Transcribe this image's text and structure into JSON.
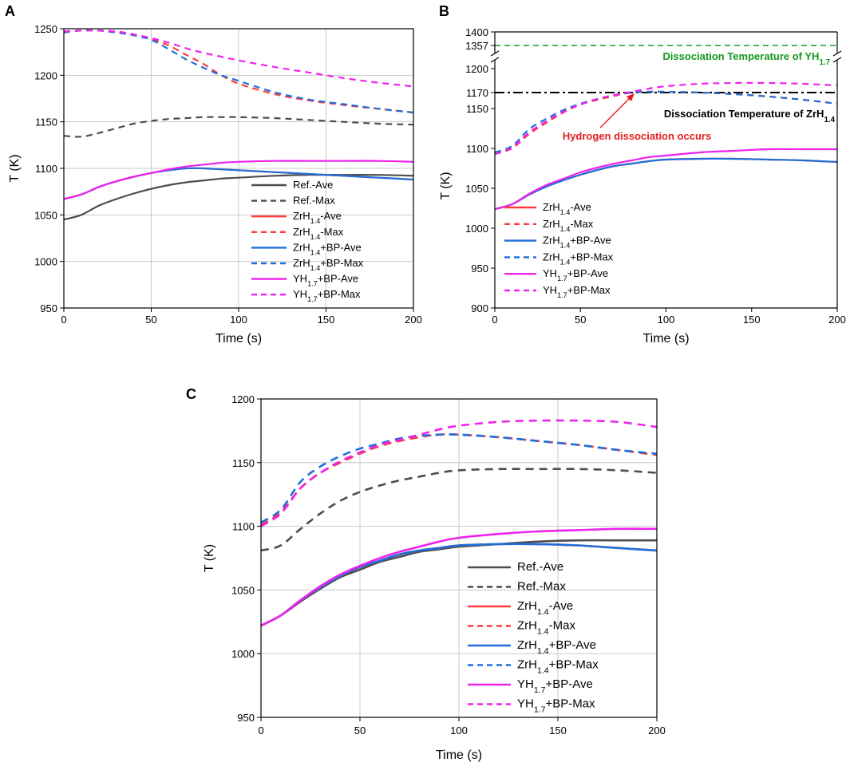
{
  "figure": {
    "panels": [
      "A",
      "B",
      "C"
    ]
  },
  "colors": {
    "ref": "#4d4d4d",
    "zr": "#ff3b3b",
    "zrbp": "#1e6fd9",
    "yh": "#ee22ee",
    "green": "#14991e",
    "red_text": "#e41e1e"
  },
  "chart_data": [
    {
      "panel": "A",
      "type": "line",
      "xlabel": "Time (s)",
      "ylabel": "T (K)",
      "xlim": [
        0,
        200
      ],
      "ylim": [
        950,
        1250
      ],
      "xticks": [
        "0",
        "50",
        "100",
        "150",
        "200"
      ],
      "yticks": [
        "950",
        "1000",
        "1050",
        "1100",
        "1150",
        "1200",
        "1250"
      ],
      "grid": true,
      "legend_position": "bottom-right",
      "x": [
        0,
        10,
        20,
        30,
        40,
        50,
        60,
        70,
        80,
        90,
        100,
        120,
        140,
        160,
        180,
        200
      ],
      "series": [
        {
          "name": "Ref.-Ave",
          "sub": "",
          "label_prefix": "Ref.-Ave",
          "style": "solid",
          "color_key": "ref",
          "values": [
            1045,
            1050,
            1060,
            1067,
            1073,
            1078,
            1082,
            1085,
            1087,
            1089,
            1090,
            1092,
            1093,
            1093,
            1093,
            1092
          ]
        },
        {
          "name": "Ref.-Max",
          "style": "dashed",
          "color_key": "ref",
          "values": [
            1135,
            1134,
            1138,
            1143,
            1148,
            1151,
            1153,
            1154,
            1155,
            1155,
            1155,
            1154,
            1152,
            1150,
            1148,
            1147
          ]
        },
        {
          "name": "ZrH1.4-Ave",
          "style": "solid",
          "color_key": "zr",
          "values": [
            1067,
            1072,
            1080,
            1086,
            1091,
            1095,
            1098,
            1100,
            1100,
            1099,
            1098,
            1096,
            1094,
            1092,
            1090,
            1088
          ]
        },
        {
          "name": "ZrH1.4-Max",
          "style": "dashed",
          "color_key": "zr",
          "values": [
            1247,
            1248,
            1248,
            1246,
            1243,
            1239,
            1232,
            1222,
            1212,
            1200,
            1191,
            1180,
            1173,
            1168,
            1164,
            1160
          ]
        },
        {
          "name": "ZrH1.4+BP-Ave",
          "style": "solid",
          "color_key": "zrbp",
          "values": [
            1067,
            1072,
            1080,
            1086,
            1091,
            1095,
            1098,
            1100,
            1100,
            1099,
            1098,
            1096,
            1094,
            1092,
            1090,
            1088
          ]
        },
        {
          "name": "ZrH1.4+BP-Max",
          "style": "dashed",
          "color_key": "zrbp",
          "values": [
            1246,
            1248,
            1248,
            1246,
            1243,
            1238,
            1228,
            1217,
            1208,
            1200,
            1194,
            1182,
            1174,
            1169,
            1164,
            1160
          ]
        },
        {
          "name": "YH1.7+BP-Ave",
          "style": "solid",
          "color_key": "yh",
          "values": [
            1067,
            1072,
            1080,
            1086,
            1091,
            1095,
            1099,
            1102,
            1104,
            1106,
            1107,
            1108,
            1108,
            1108,
            1108,
            1107
          ]
        },
        {
          "name": "YH1.7+BP-Max",
          "style": "dashed",
          "color_key": "yh",
          "values": [
            1247,
            1248,
            1248,
            1247,
            1244,
            1240,
            1235,
            1229,
            1224,
            1220,
            1216,
            1209,
            1203,
            1197,
            1192,
            1188
          ]
        }
      ],
      "legend": [
        {
          "main": "Ref.-Ave",
          "sub": "",
          "tail": "",
          "key": "ref",
          "dash": false
        },
        {
          "main": "Ref.-Max",
          "sub": "",
          "tail": "",
          "key": "ref",
          "dash": true
        },
        {
          "main": "ZrH",
          "sub": "1.4",
          "tail": "-Ave",
          "key": "zr",
          "dash": false
        },
        {
          "main": "ZrH",
          "sub": "1.4",
          "tail": "-Max",
          "key": "zr",
          "dash": true
        },
        {
          "main": "ZrH",
          "sub": "1.4",
          "tail": "+BP-Ave",
          "key": "zrbp",
          "dash": false
        },
        {
          "main": "ZrH",
          "sub": "1.4",
          "tail": "+BP-Max",
          "key": "zrbp",
          "dash": true
        },
        {
          "main": "YH",
          "sub": "1.7",
          "tail": "+BP-Ave",
          "key": "yh",
          "dash": false
        },
        {
          "main": "YH",
          "sub": "1.7",
          "tail": "+BP-Max",
          "key": "yh",
          "dash": true
        }
      ]
    },
    {
      "panel": "B",
      "type": "line",
      "xlabel": "Time (s)",
      "ylabel": "T (K)",
      "xlim": [
        0,
        200
      ],
      "ylim": [
        900,
        1400
      ],
      "axis_break": [
        1200,
        1357
      ],
      "xticks": [
        "0",
        "50",
        "100",
        "150",
        "200"
      ],
      "yticks_lower": [
        "900",
        "950",
        "1000",
        "1050",
        "1100",
        "1150",
        "1170",
        "1200"
      ],
      "yticks_upper": [
        "1357",
        "1400"
      ],
      "grid": false,
      "legend_position": "bottom-left",
      "reference_lines": [
        {
          "value": 1357,
          "label": "Dissociation Temperature of YH",
          "sub": "1.7",
          "color_key": "green",
          "style": "dashed"
        },
        {
          "value": 1170,
          "label": "Dissociation Temperature of ZrH",
          "sub": "1.4",
          "color_key": "ref",
          "style": "dashdot"
        }
      ],
      "annotation": {
        "text": "Hydrogen dissociation occurs",
        "color_key": "red_text",
        "points_to": [
          82,
          1170
        ]
      },
      "x": [
        0,
        10,
        20,
        30,
        40,
        50,
        60,
        70,
        80,
        90,
        100,
        120,
        140,
        160,
        180,
        200
      ],
      "series": [
        {
          "name": "ZrH1.4-Ave",
          "style": "solid",
          "color_key": "zr",
          "values": [
            1024,
            1030,
            1042,
            1052,
            1060,
            1067,
            1073,
            1078,
            1081,
            1084,
            1086,
            1087,
            1087,
            1086,
            1085,
            1083
          ]
        },
        {
          "name": "ZrH1.4-Max",
          "style": "dashed",
          "color_key": "zr",
          "values": [
            1093,
            1100,
            1118,
            1132,
            1145,
            1155,
            1161,
            1166,
            1170,
            1171,
            1171,
            1170,
            1168,
            1165,
            1161,
            1156
          ]
        },
        {
          "name": "ZrH1.4+BP-Ave",
          "style": "solid",
          "color_key": "zrbp",
          "values": [
            1024,
            1030,
            1042,
            1052,
            1060,
            1067,
            1073,
            1078,
            1081,
            1084,
            1086,
            1087,
            1087,
            1086,
            1085,
            1083
          ]
        },
        {
          "name": "ZrH1.4+BP-Max",
          "style": "dashed",
          "color_key": "zrbp",
          "values": [
            1095,
            1103,
            1124,
            1137,
            1148,
            1156,
            1162,
            1167,
            1170,
            1171,
            1171,
            1170,
            1168,
            1165,
            1161,
            1156
          ]
        },
        {
          "name": "YH1.7+BP-Ave",
          "style": "solid",
          "color_key": "yh",
          "values": [
            1024,
            1030,
            1043,
            1054,
            1062,
            1070,
            1076,
            1081,
            1085,
            1089,
            1091,
            1095,
            1097,
            1099,
            1099,
            1099
          ]
        },
        {
          "name": "YH1.7+BP-Max",
          "style": "dashed",
          "color_key": "yh",
          "values": [
            1093,
            1101,
            1120,
            1134,
            1146,
            1155,
            1162,
            1167,
            1171,
            1175,
            1178,
            1181,
            1182,
            1182,
            1181,
            1179
          ]
        }
      ],
      "legend": [
        {
          "main": "ZrH",
          "sub": "1.4",
          "tail": "-Ave",
          "key": "zr",
          "dash": false
        },
        {
          "main": "ZrH",
          "sub": "1.4",
          "tail": "-Max",
          "key": "zr",
          "dash": true
        },
        {
          "main": "ZrH",
          "sub": "1.4",
          "tail": "+BP-Ave",
          "key": "zrbp",
          "dash": false
        },
        {
          "main": "ZrH",
          "sub": "1.4",
          "tail": "+BP-Max",
          "key": "zrbp",
          "dash": true
        },
        {
          "main": "YH",
          "sub": "1.7",
          "tail": "+BP-Ave",
          "key": "yh",
          "dash": false
        },
        {
          "main": "YH",
          "sub": "1.7",
          "tail": "+BP-Max",
          "key": "yh",
          "dash": true
        }
      ]
    },
    {
      "panel": "C",
      "type": "line",
      "xlabel": "Time (s)",
      "ylabel": "T (K)",
      "xlim": [
        0,
        200
      ],
      "ylim": [
        950,
        1200
      ],
      "xticks": [
        "0",
        "50",
        "100",
        "150",
        "200"
      ],
      "yticks": [
        "950",
        "1000",
        "1050",
        "1100",
        "1150",
        "1200"
      ],
      "grid": true,
      "legend_position": "bottom-right",
      "x": [
        0,
        10,
        20,
        30,
        40,
        50,
        60,
        70,
        80,
        90,
        100,
        120,
        140,
        160,
        180,
        200
      ],
      "series": [
        {
          "name": "Ref.-Ave",
          "style": "solid",
          "color_key": "ref",
          "values": [
            1022,
            1030,
            1041,
            1051,
            1060,
            1066,
            1072,
            1076,
            1080,
            1082,
            1084,
            1086,
            1088,
            1089,
            1089,
            1089
          ]
        },
        {
          "name": "Ref.-Max",
          "style": "dashed",
          "color_key": "ref",
          "values": [
            1081,
            1085,
            1098,
            1110,
            1120,
            1127,
            1132,
            1136,
            1139,
            1142,
            1144,
            1145,
            1145,
            1145,
            1144,
            1142
          ]
        },
        {
          "name": "ZrH1.4-Ave",
          "style": "solid",
          "color_key": "zr",
          "values": [
            1022,
            1030,
            1042,
            1052,
            1061,
            1068,
            1073,
            1078,
            1081,
            1083,
            1085,
            1086,
            1086,
            1085,
            1083,
            1081
          ]
        },
        {
          "name": "ZrH1.4-Max",
          "style": "dashed",
          "color_key": "zr",
          "values": [
            1101,
            1111,
            1130,
            1142,
            1150,
            1157,
            1163,
            1167,
            1170,
            1172,
            1172,
            1170,
            1167,
            1164,
            1160,
            1156
          ]
        },
        {
          "name": "ZrH1.4+BP-Ave",
          "style": "solid",
          "color_key": "zrbp",
          "values": [
            1022,
            1030,
            1042,
            1052,
            1061,
            1068,
            1073,
            1078,
            1081,
            1083,
            1085,
            1086,
            1086,
            1085,
            1083,
            1081
          ]
        },
        {
          "name": "ZrH1.4+BP-Max",
          "style": "dashed",
          "color_key": "zrbp",
          "values": [
            1103,
            1113,
            1135,
            1147,
            1155,
            1161,
            1165,
            1169,
            1171,
            1172,
            1172,
            1170,
            1167,
            1164,
            1160,
            1157
          ]
        },
        {
          "name": "YH1.7+BP-Ave",
          "style": "solid",
          "color_key": "yh",
          "values": [
            1022,
            1030,
            1042,
            1053,
            1062,
            1069,
            1075,
            1080,
            1084,
            1088,
            1091,
            1094,
            1096,
            1097,
            1098,
            1098
          ]
        },
        {
          "name": "YH1.7+BP-Max",
          "style": "dashed",
          "color_key": "yh",
          "values": [
            1100,
            1110,
            1130,
            1142,
            1151,
            1158,
            1164,
            1168,
            1172,
            1176,
            1179,
            1182,
            1183,
            1183,
            1182,
            1178
          ]
        }
      ],
      "legend": [
        {
          "main": "Ref.-Ave",
          "sub": "",
          "tail": "",
          "key": "ref",
          "dash": false
        },
        {
          "main": "Ref.-Max",
          "sub": "",
          "tail": "",
          "key": "ref",
          "dash": true
        },
        {
          "main": "ZrH",
          "sub": "1.4",
          "tail": "-Ave",
          "key": "zr",
          "dash": false
        },
        {
          "main": "ZrH",
          "sub": "1.4",
          "tail": "-Max",
          "key": "zr",
          "dash": true
        },
        {
          "main": "ZrH",
          "sub": "1.4",
          "tail": "+BP-Ave",
          "key": "zrbp",
          "dash": false
        },
        {
          "main": "ZrH",
          "sub": "1.4",
          "tail": "+BP-Max",
          "key": "zrbp",
          "dash": true
        },
        {
          "main": "YH",
          "sub": "1.7",
          "tail": "+BP-Ave",
          "key": "yh",
          "dash": false
        },
        {
          "main": "YH",
          "sub": "1.7",
          "tail": "+BP-Max",
          "key": "yh",
          "dash": true
        }
      ]
    }
  ]
}
